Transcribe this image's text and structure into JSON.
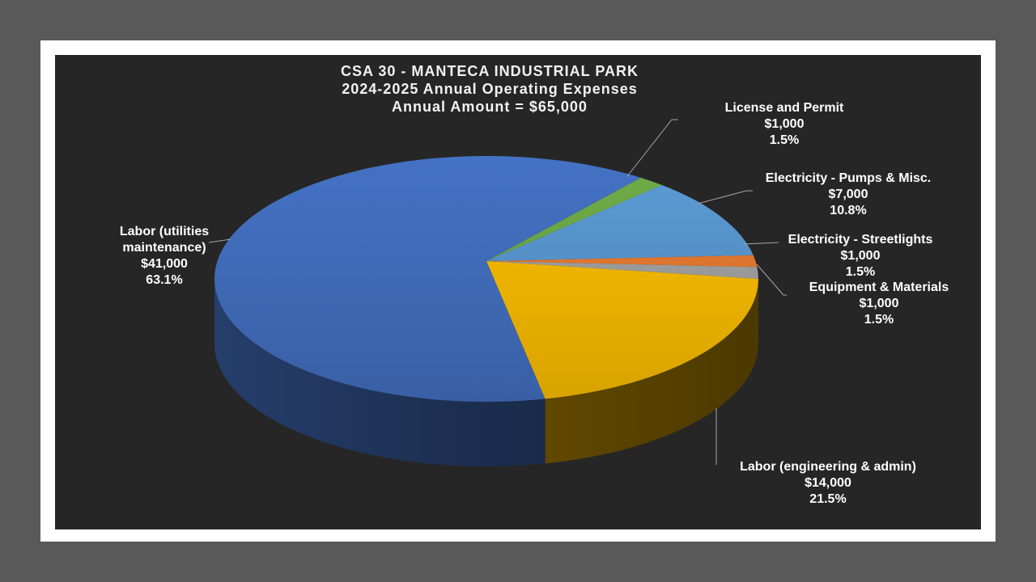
{
  "chart_data": {
    "type": "pie",
    "style": "3d",
    "title": [
      "CSA 30 - MANTECA INDUSTRIAL PARK",
      "2024-2025 Annual Operating Expenses",
      "Annual Amount = $65,000"
    ],
    "start_angle": "east, clockwise",
    "slices": [
      {
        "label": "Labor (engineering & admin)",
        "value_text": "$14,000",
        "pct_text": "21.5%",
        "value": 14000,
        "pct": 21.5,
        "color": "#FFC000"
      },
      {
        "label": "Labor (utilities maintenance)",
        "value_text": "$41,000",
        "pct_text": "63.1%",
        "value": 41000,
        "pct": 63.1,
        "color": "#4472C4"
      },
      {
        "label": "License and Permit",
        "value_text": "$1,000",
        "pct_text": "1.5%",
        "value": 1000,
        "pct": 1.5,
        "color": "#70AD47"
      },
      {
        "label": "Electricity - Pumps & Misc.",
        "value_text": "$7,000",
        "pct_text": "10.8%",
        "value": 7000,
        "pct": 10.8,
        "color": "#5B9BD5"
      },
      {
        "label": "Electricity - Streetlights",
        "value_text": "$1,000",
        "pct_text": "1.5%",
        "value": 1000,
        "pct": 1.5,
        "color": "#ED7D31"
      },
      {
        "label": "Equipment & Materials",
        "value_text": "$1,000",
        "pct_text": "1.5%",
        "value": 1000,
        "pct": 1.5,
        "color": "#A5A5A5"
      }
    ],
    "legend": "none (data labels)"
  }
}
